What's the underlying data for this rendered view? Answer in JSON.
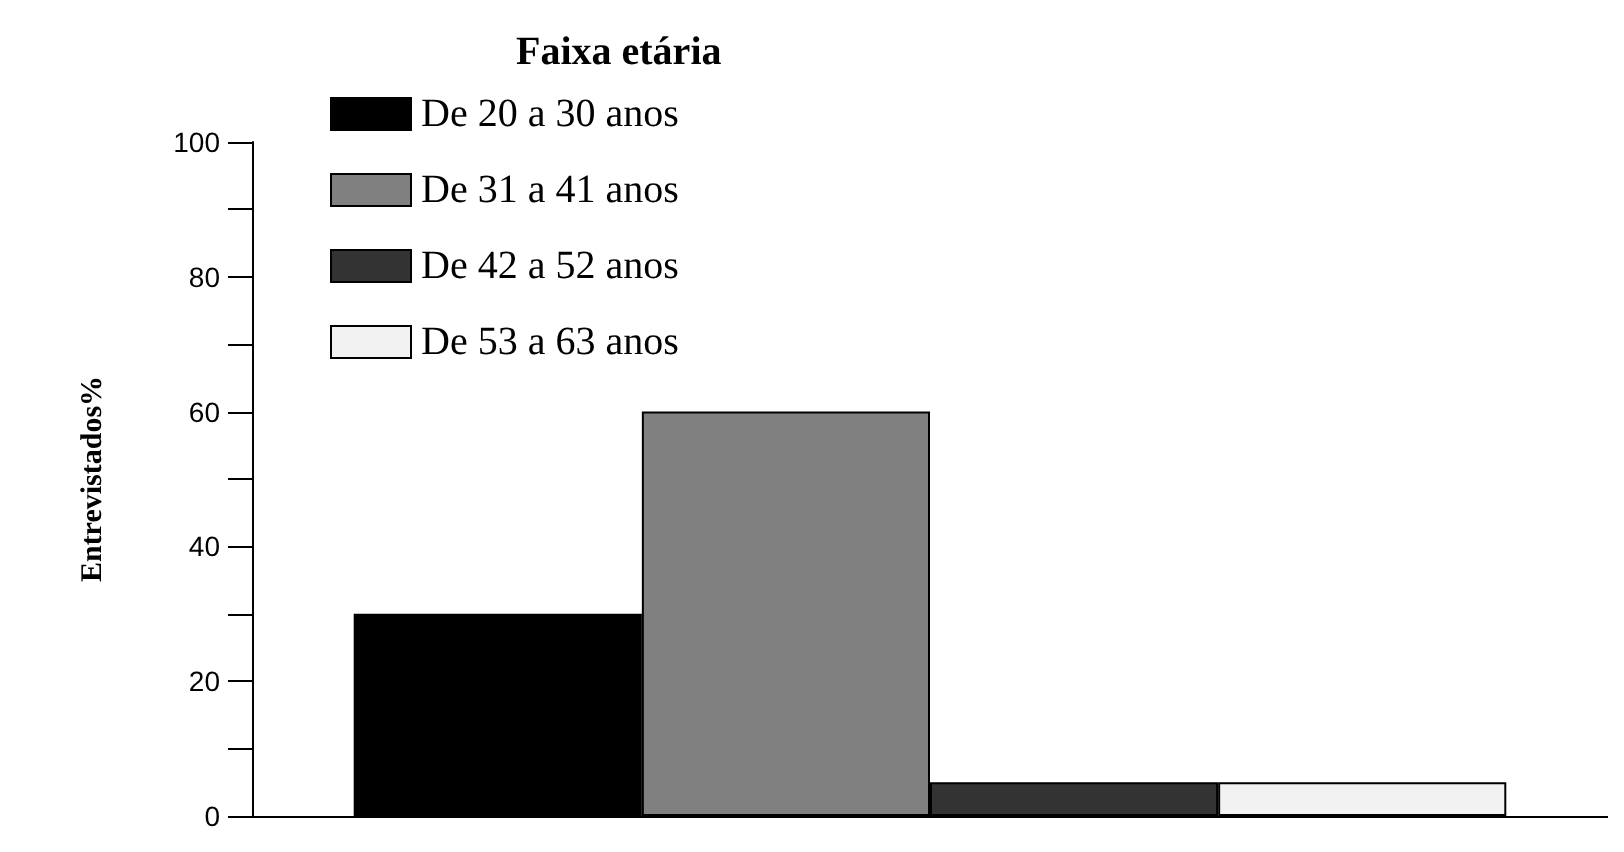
{
  "chart_data": {
    "type": "bar",
    "ylabel": "Entrevistados%",
    "legend_title": "Faixa etária",
    "categories": [
      null
    ],
    "series": [
      {
        "name": "De 20 a 30 anos",
        "color": "#000000",
        "values": [
          30
        ]
      },
      {
        "name": "De 31 a 41 anos",
        "color": "#808080",
        "values": [
          60
        ]
      },
      {
        "name": "De 42 a 52 anos",
        "color": "#333333",
        "values": [
          5
        ]
      },
      {
        "name": "De 53 a 63 anos",
        "color": "#f2f2f2",
        "values": [
          5
        ]
      }
    ],
    "ylim": [
      0,
      100
    ],
    "yticks": [
      0,
      {
        "value": 10,
        "label": null
      },
      20,
      {
        "value": 30,
        "label": null
      },
      40,
      {
        "value": 50,
        "label": null
      },
      60,
      {
        "value": 70,
        "label": null
      },
      80,
      {
        "value": 90,
        "label": null
      },
      100
    ],
    "grid": false,
    "legend": "top left"
  }
}
